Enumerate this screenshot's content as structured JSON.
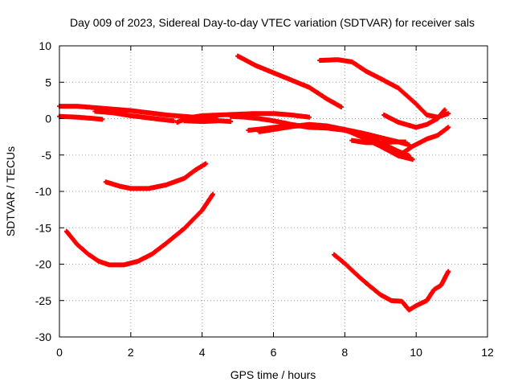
{
  "chart_data": {
    "type": "scatter",
    "title": "Day 009 of 2023, Sidereal Day-to-day VTEC variation (SDTVAR) for receiver sals",
    "xlabel": "GPS time / hours",
    "ylabel": "SDTVAR / TECUs",
    "xlim": [
      0,
      12
    ],
    "ylim": [
      -30,
      10
    ],
    "xticks": [
      0,
      2,
      4,
      6,
      8,
      10,
      12
    ],
    "yticks": [
      -30,
      -25,
      -20,
      -15,
      -10,
      -5,
      0,
      5,
      10
    ],
    "grid": true,
    "series_color": "#ff0000",
    "series": [
      {
        "name": "s1",
        "points": [
          [
            0.0,
            1.7
          ],
          [
            0.5,
            1.7
          ],
          [
            1.0,
            1.5
          ],
          [
            1.5,
            1.3
          ],
          [
            2.0,
            1.1
          ],
          [
            2.5,
            0.8
          ],
          [
            3.0,
            0.5
          ],
          [
            3.5,
            0.3
          ],
          [
            4.0,
            0.1
          ],
          [
            4.4,
            0.0
          ]
        ]
      },
      {
        "name": "s2",
        "points": [
          [
            0.0,
            0.3
          ],
          [
            0.5,
            0.2
          ],
          [
            1.0,
            0.0
          ],
          [
            1.2,
            -0.1
          ]
        ]
      },
      {
        "name": "s3",
        "points": [
          [
            1.0,
            1.0
          ],
          [
            1.5,
            0.8
          ],
          [
            2.0,
            0.4
          ],
          [
            2.5,
            0.1
          ],
          [
            3.0,
            -0.2
          ],
          [
            3.2,
            -0.3
          ]
        ]
      },
      {
        "name": "s4",
        "points": [
          [
            3.3,
            -0.5
          ],
          [
            3.6,
            0.1
          ],
          [
            4.0,
            0.4
          ],
          [
            4.5,
            0.5
          ],
          [
            5.0,
            0.6
          ],
          [
            5.5,
            0.7
          ],
          [
            6.0,
            0.7
          ],
          [
            6.5,
            0.5
          ],
          [
            7.0,
            0.2
          ]
        ]
      },
      {
        "name": "s5",
        "points": [
          [
            3.5,
            -0.3
          ],
          [
            4.0,
            -0.4
          ],
          [
            4.5,
            -0.3
          ],
          [
            4.8,
            -0.4
          ]
        ]
      },
      {
        "name": "s6",
        "points": [
          [
            4.8,
            0.3
          ],
          [
            5.2,
            0.2
          ],
          [
            5.6,
            0.0
          ],
          [
            6.0,
            -0.3
          ],
          [
            6.5,
            -0.8
          ],
          [
            7.0,
            -1.2
          ],
          [
            7.5,
            -1.3
          ],
          [
            8.0,
            -1.6
          ],
          [
            8.5,
            -2.3
          ],
          [
            9.0,
            -3.3
          ],
          [
            9.5,
            -4.5
          ],
          [
            9.8,
            -5.1
          ]
        ]
      },
      {
        "name": "s7",
        "points": [
          [
            5.3,
            -1.6
          ],
          [
            5.7,
            -1.4
          ],
          [
            6.0,
            -1.2
          ],
          [
            6.5,
            -1.0
          ],
          [
            7.0,
            -1.0
          ],
          [
            7.5,
            -1.2
          ],
          [
            8.0,
            -1.5
          ],
          [
            8.5,
            -2.0
          ],
          [
            9.0,
            -2.6
          ],
          [
            9.5,
            -3.2
          ],
          [
            9.8,
            -3.6
          ]
        ]
      },
      {
        "name": "s8",
        "points": [
          [
            5.6,
            -1.8
          ],
          [
            6.0,
            -1.5
          ],
          [
            6.5,
            -1.1
          ],
          [
            7.0,
            -0.8
          ],
          [
            7.5,
            -1.0
          ],
          [
            8.0,
            -1.5
          ],
          [
            8.5,
            -2.6
          ],
          [
            9.0,
            -3.8
          ],
          [
            9.5,
            -5.1
          ],
          [
            9.9,
            -5.6
          ]
        ]
      },
      {
        "name": "s9",
        "points": [
          [
            8.2,
            -3.0
          ],
          [
            8.6,
            -3.3
          ],
          [
            9.0,
            -3.3
          ],
          [
            9.4,
            -3.2
          ],
          [
            9.7,
            -3.2
          ]
        ]
      },
      {
        "name": "s10",
        "points": [
          [
            5.0,
            8.6
          ],
          [
            5.5,
            7.3
          ],
          [
            6.0,
            6.3
          ],
          [
            6.5,
            5.3
          ],
          [
            7.0,
            4.3
          ],
          [
            7.5,
            2.7
          ],
          [
            7.9,
            1.6
          ]
        ]
      },
      {
        "name": "s11",
        "points": [
          [
            7.3,
            8.0
          ],
          [
            7.8,
            8.1
          ],
          [
            8.2,
            7.8
          ],
          [
            8.6,
            6.5
          ],
          [
            9.0,
            5.5
          ],
          [
            9.5,
            4.2
          ],
          [
            10.0,
            2.0
          ],
          [
            10.3,
            0.5
          ],
          [
            10.6,
            0.2
          ],
          [
            10.9,
            0.7
          ]
        ]
      },
      {
        "name": "s12",
        "points": [
          [
            9.1,
            0.5
          ],
          [
            9.5,
            -0.5
          ],
          [
            10.0,
            -1.2
          ],
          [
            10.3,
            -0.8
          ],
          [
            10.6,
            0.0
          ],
          [
            10.8,
            1.2
          ]
        ]
      },
      {
        "name": "s13",
        "points": [
          [
            9.6,
            -4.8
          ],
          [
            9.9,
            -3.8
          ],
          [
            10.3,
            -2.8
          ],
          [
            10.6,
            -2.3
          ],
          [
            10.9,
            -1.2
          ]
        ]
      },
      {
        "name": "s14",
        "points": [
          [
            1.3,
            -8.7
          ],
          [
            1.7,
            -9.3
          ],
          [
            2.0,
            -9.6
          ],
          [
            2.5,
            -9.6
          ],
          [
            3.0,
            -9.1
          ],
          [
            3.5,
            -8.2
          ],
          [
            3.8,
            -7.1
          ],
          [
            4.1,
            -6.2
          ]
        ]
      },
      {
        "name": "s15",
        "points": [
          [
            0.2,
            -15.5
          ],
          [
            0.5,
            -17.3
          ],
          [
            0.8,
            -18.6
          ],
          [
            1.1,
            -19.6
          ],
          [
            1.4,
            -20.1
          ],
          [
            1.8,
            -20.1
          ],
          [
            2.2,
            -19.6
          ],
          [
            2.6,
            -18.6
          ],
          [
            3.0,
            -17.1
          ],
          [
            3.5,
            -15.1
          ],
          [
            4.0,
            -12.6
          ],
          [
            4.3,
            -10.4
          ]
        ]
      },
      {
        "name": "s16",
        "points": [
          [
            7.7,
            -18.7
          ],
          [
            8.0,
            -19.9
          ],
          [
            8.3,
            -21.3
          ],
          [
            8.6,
            -22.6
          ],
          [
            9.0,
            -24.2
          ],
          [
            9.3,
            -25.0
          ],
          [
            9.6,
            -25.1
          ],
          [
            9.8,
            -26.3
          ],
          [
            10.0,
            -25.7
          ],
          [
            10.3,
            -25.0
          ],
          [
            10.5,
            -23.5
          ],
          [
            10.7,
            -22.9
          ],
          [
            10.9,
            -21.0
          ]
        ]
      }
    ]
  }
}
